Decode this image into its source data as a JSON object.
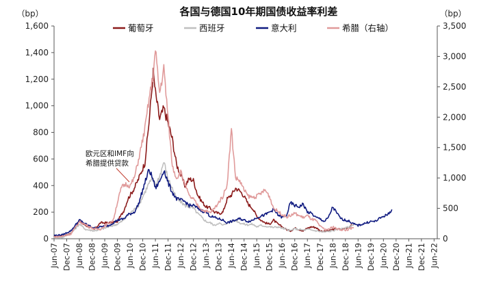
{
  "chart_data": {
    "type": "line",
    "title": "各国与德国10年期国债收益率利差",
    "left_unit": "（bp）",
    "right_unit": "（bp）",
    "left_axis": {
      "min": 0,
      "max": 1600,
      "ticks": [
        0,
        200,
        400,
        600,
        800,
        "1,000",
        "1,200",
        "1,400",
        "1,600"
      ]
    },
    "right_axis": {
      "min": 0,
      "max": 3500,
      "ticks": [
        0,
        500,
        "1,000",
        "1,500",
        "2,000",
        "2,500",
        "3,000",
        "3,500"
      ]
    },
    "x_ticks": [
      "Jun-07",
      "Dec-07",
      "Jun-08",
      "Dec-08",
      "Jun-09",
      "Dec-09",
      "Jun-10",
      "Dec-10",
      "Jun-11",
      "Dec-11",
      "Jun-12",
      "Dec-12",
      "Jun-13",
      "Dec-13",
      "Jun-14",
      "Dec-14",
      "Jun-15",
      "Dec-15",
      "Jun-16",
      "Dec-16",
      "Jun-17",
      "Dec-17",
      "Jun-18",
      "Dec-18",
      "Jun-19",
      "Dec-19",
      "Jun-20",
      "Dec-20",
      "Jun-21",
      "Dec-21",
      "Jun-22"
    ],
    "annotation": [
      "欧元区和IMF向",
      "希腊提供贷款"
    ],
    "series": [
      {
        "name": "葡萄牙",
        "axis": "left",
        "color": "#8b1a1a",
        "points": [
          [
            0,
            15
          ],
          [
            4,
            20
          ],
          [
            8,
            40
          ],
          [
            12,
            130
          ],
          [
            15,
            100
          ],
          [
            19,
            70
          ],
          [
            22,
            120
          ],
          [
            26,
            120
          ],
          [
            30,
            130
          ],
          [
            33,
            210
          ],
          [
            35,
            300
          ],
          [
            38,
            380
          ],
          [
            40,
            450
          ],
          [
            43,
            570
          ],
          [
            45,
            880
          ],
          [
            47,
            1250
          ],
          [
            48,
            1100
          ],
          [
            50,
            900
          ],
          [
            52,
            980
          ],
          [
            54,
            870
          ],
          [
            56,
            750
          ],
          [
            58,
            560
          ],
          [
            60,
            480
          ],
          [
            62,
            400
          ],
          [
            64,
            450
          ],
          [
            66,
            440
          ],
          [
            68,
            330
          ],
          [
            70,
            280
          ],
          [
            72,
            240
          ],
          [
            74,
            230
          ],
          [
            76,
            200
          ],
          [
            78,
            190
          ],
          [
            80,
            200
          ],
          [
            82,
            300
          ],
          [
            84,
            330
          ],
          [
            86,
            380
          ],
          [
            88,
            360
          ],
          [
            90,
            320
          ],
          [
            92,
            260
          ],
          [
            94,
            230
          ],
          [
            96,
            170
          ],
          [
            98,
            140
          ],
          [
            100,
            120
          ],
          [
            102,
            110
          ],
          [
            104,
            140
          ],
          [
            106,
            110
          ],
          [
            108,
            90
          ],
          [
            110,
            70
          ],
          [
            112,
            60
          ],
          [
            114,
            80
          ],
          [
            116,
            70
          ],
          [
            118,
            60
          ],
          [
            120,
            80
          ],
          [
            122,
            90
          ],
          [
            124,
            85
          ],
          [
            126,
            60
          ],
          [
            128,
            55
          ],
          [
            130,
            60
          ],
          [
            132,
            70
          ],
          [
            134,
            75
          ],
          [
            136,
            70
          ],
          [
            138,
            80
          ],
          [
            140,
            90
          ],
          [
            142,
            110
          ]
        ]
      },
      {
        "name": "西班牙",
        "axis": "left",
        "color": "#bfbfbf",
        "points": [
          [
            0,
            8
          ],
          [
            4,
            10
          ],
          [
            8,
            40
          ],
          [
            12,
            110
          ],
          [
            15,
            70
          ],
          [
            19,
            60
          ],
          [
            22,
            70
          ],
          [
            26,
            90
          ],
          [
            30,
            110
          ],
          [
            33,
            140
          ],
          [
            35,
            180
          ],
          [
            38,
            220
          ],
          [
            40,
            250
          ],
          [
            43,
            350
          ],
          [
            45,
            420
          ],
          [
            47,
            450
          ],
          [
            48,
            400
          ],
          [
            50,
            470
          ],
          [
            52,
            580
          ],
          [
            54,
            450
          ],
          [
            56,
            380
          ],
          [
            58,
            300
          ],
          [
            60,
            280
          ],
          [
            62,
            250
          ],
          [
            64,
            240
          ],
          [
            66,
            230
          ],
          [
            68,
            190
          ],
          [
            70,
            160
          ],
          [
            72,
            130
          ],
          [
            74,
            120
          ],
          [
            76,
            100
          ],
          [
            78,
            120
          ],
          [
            80,
            100
          ],
          [
            82,
            120
          ],
          [
            84,
            130
          ],
          [
            86,
            140
          ],
          [
            88,
            120
          ],
          [
            90,
            110
          ],
          [
            92,
            105
          ],
          [
            94,
            110
          ],
          [
            96,
            90
          ],
          [
            98,
            100
          ],
          [
            100,
            95
          ],
          [
            102,
            90
          ],
          [
            104,
            85
          ],
          [
            106,
            90
          ],
          [
            108,
            80
          ],
          [
            110,
            70
          ],
          [
            112,
            60
          ],
          [
            114,
            75
          ],
          [
            116,
            70
          ],
          [
            118,
            65
          ],
          [
            120,
            70
          ],
          [
            122,
            65
          ],
          [
            124,
            60
          ],
          [
            126,
            55
          ],
          [
            128,
            50
          ],
          [
            130,
            55
          ],
          [
            132,
            60
          ],
          [
            134,
            70
          ],
          [
            136,
            75
          ],
          [
            138,
            80
          ],
          [
            140,
            90
          ],
          [
            142,
            110
          ]
        ]
      },
      {
        "name": "意大利",
        "axis": "left",
        "color": "#0f1a80",
        "points": [
          [
            0,
            25
          ],
          [
            4,
            30
          ],
          [
            8,
            60
          ],
          [
            12,
            140
          ],
          [
            15,
            110
          ],
          [
            19,
            80
          ],
          [
            22,
            90
          ],
          [
            26,
            100
          ],
          [
            30,
            140
          ],
          [
            33,
            150
          ],
          [
            35,
            180
          ],
          [
            38,
            200
          ],
          [
            40,
            260
          ],
          [
            43,
            420
          ],
          [
            45,
            520
          ],
          [
            47,
            440
          ],
          [
            48,
            380
          ],
          [
            50,
            430
          ],
          [
            52,
            520
          ],
          [
            54,
            420
          ],
          [
            56,
            350
          ],
          [
            58,
            300
          ],
          [
            60,
            290
          ],
          [
            62,
            280
          ],
          [
            64,
            250
          ],
          [
            66,
            250
          ],
          [
            68,
            230
          ],
          [
            70,
            210
          ],
          [
            72,
            200
          ],
          [
            74,
            170
          ],
          [
            76,
            160
          ],
          [
            78,
            150
          ],
          [
            80,
            140
          ],
          [
            82,
            120
          ],
          [
            84,
            130
          ],
          [
            86,
            140
          ],
          [
            88,
            150
          ],
          [
            90,
            140
          ],
          [
            92,
            130
          ],
          [
            94,
            140
          ],
          [
            96,
            160
          ],
          [
            98,
            170
          ],
          [
            100,
            180
          ],
          [
            102,
            200
          ],
          [
            104,
            220
          ],
          [
            106,
            180
          ],
          [
            108,
            160
          ],
          [
            110,
            170
          ],
          [
            112,
            270
          ],
          [
            114,
            250
          ],
          [
            116,
            240
          ],
          [
            118,
            260
          ],
          [
            120,
            200
          ],
          [
            122,
            190
          ],
          [
            124,
            160
          ],
          [
            126,
            150
          ],
          [
            128,
            130
          ],
          [
            130,
            160
          ],
          [
            132,
            240
          ],
          [
            134,
            190
          ],
          [
            136,
            150
          ],
          [
            138,
            140
          ],
          [
            140,
            130
          ],
          [
            142,
            110
          ],
          [
            144,
            100
          ],
          [
            146,
            110
          ],
          [
            148,
            120
          ],
          [
            150,
            130
          ],
          [
            152,
            130
          ],
          [
            154,
            150
          ],
          [
            156,
            170
          ],
          [
            158,
            180
          ],
          [
            160,
            220
          ]
        ]
      },
      {
        "name": "希腊（右轴）",
        "axis": "right",
        "color": "#e09a9a",
        "points": [
          [
            0,
            30
          ],
          [
            4,
            40
          ],
          [
            8,
            80
          ],
          [
            12,
            280
          ],
          [
            15,
            230
          ],
          [
            19,
            160
          ],
          [
            22,
            160
          ],
          [
            26,
            260
          ],
          [
            28,
            300
          ],
          [
            30,
            600
          ],
          [
            32,
            850
          ],
          [
            34,
            900
          ],
          [
            36,
            870
          ],
          [
            38,
            1000
          ],
          [
            40,
            1300
          ],
          [
            43,
            1800
          ],
          [
            45,
            2300
          ],
          [
            47,
            2700
          ],
          [
            48,
            3100
          ],
          [
            50,
            2400
          ],
          [
            52,
            2800
          ],
          [
            54,
            2000
          ],
          [
            56,
            1200
          ],
          [
            58,
            1000
          ],
          [
            60,
            1100
          ],
          [
            62,
            900
          ],
          [
            64,
            700
          ],
          [
            66,
            650
          ],
          [
            68,
            550
          ],
          [
            70,
            480
          ],
          [
            72,
            450
          ],
          [
            74,
            430
          ],
          [
            76,
            500
          ],
          [
            78,
            600
          ],
          [
            80,
            700
          ],
          [
            82,
            900
          ],
          [
            84,
            1800
          ],
          [
            86,
            1000
          ],
          [
            88,
            950
          ],
          [
            90,
            800
          ],
          [
            92,
            700
          ],
          [
            94,
            680
          ],
          [
            96,
            700
          ],
          [
            98,
            750
          ],
          [
            100,
            800
          ],
          [
            102,
            700
          ],
          [
            104,
            500
          ],
          [
            106,
            450
          ],
          [
            108,
            400
          ],
          [
            110,
            360
          ],
          [
            112,
            380
          ],
          [
            114,
            420
          ],
          [
            116,
            380
          ],
          [
            118,
            350
          ],
          [
            120,
            380
          ],
          [
            122,
            320
          ],
          [
            124,
            300
          ],
          [
            126,
            200
          ],
          [
            128,
            160
          ],
          [
            130,
            150
          ],
          [
            132,
            200
          ],
          [
            134,
            160
          ],
          [
            136,
            150
          ],
          [
            138,
            140
          ],
          [
            140,
            160
          ],
          [
            142,
            180
          ]
        ]
      }
    ]
  }
}
